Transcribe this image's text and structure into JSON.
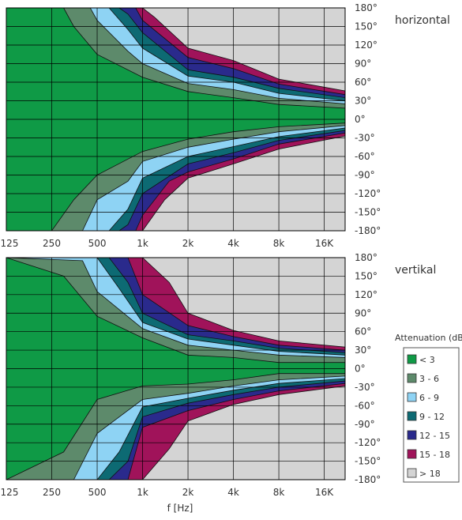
{
  "chart_data": {
    "type": "contour",
    "x_label": "f [Hz]",
    "x_ticks": [
      "125",
      "250",
      "500",
      "1k",
      "2k",
      "4k",
      "8k",
      "16K"
    ],
    "y_ticks": [
      "180°",
      "150°",
      "120°",
      "90°",
      "60°",
      "30°",
      "0°",
      "-30°",
      "-60°",
      "-90°",
      "-120°",
      "-150°",
      "-180°"
    ],
    "y_range": [
      -180,
      180
    ],
    "grid": true,
    "legend": {
      "title": "Attenuation (dB)",
      "placement": "right",
      "items": [
        {
          "label": "< 3",
          "color": "#0f9a46"
        },
        {
          "label": "3 - 6",
          "color": "#5d8a6b"
        },
        {
          "label": "6 - 9",
          "color": "#8ed3f4"
        },
        {
          "label": "9 - 12",
          "color": "#0d6a73"
        },
        {
          "label": "12 - 15",
          "color": "#2a2a8c"
        },
        {
          "label": "15 - 18",
          "color": "#a0135a"
        },
        {
          "label": "> 18",
          "color": "#d4d4d4"
        }
      ]
    },
    "panels": [
      {
        "title": "horizontal",
        "boundaries": [
          {
            "level": "3 - 6",
            "upper": [
              [
                125,
                180
              ],
              [
                300,
                180
              ],
              [
                350,
                150
              ],
              [
                500,
                105
              ],
              [
                1000,
                68
              ],
              [
                2000,
                45
              ],
              [
                4000,
                35
              ],
              [
                8000,
                24
              ],
              [
                22000,
                18
              ]
            ],
            "lower": [
              [
                125,
                -180
              ],
              [
                250,
                -180
              ],
              [
                350,
                -130
              ],
              [
                500,
                -90
              ],
              [
                1000,
                -52
              ],
              [
                2000,
                -32
              ],
              [
                4000,
                -20
              ],
              [
                8000,
                -12
              ],
              [
                22000,
                -6
              ]
            ]
          },
          {
            "level": "6 - 9",
            "upper": [
              [
                125,
                180
              ],
              [
                450,
                180
              ],
              [
                500,
                160
              ],
              [
                800,
                110
              ],
              [
                1000,
                90
              ],
              [
                2000,
                58
              ],
              [
                4000,
                48
              ],
              [
                8000,
                34
              ],
              [
                22000,
                25
              ]
            ],
            "lower": [
              [
                125,
                -180
              ],
              [
                400,
                -180
              ],
              [
                500,
                -130
              ],
              [
                800,
                -100
              ],
              [
                1000,
                -68
              ],
              [
                2000,
                -45
              ],
              [
                4000,
                -32
              ],
              [
                8000,
                -20
              ],
              [
                22000,
                -10
              ]
            ]
          },
          {
            "level": "9 - 12",
            "upper": [
              [
                125,
                180
              ],
              [
                600,
                180
              ],
              [
                800,
                145
              ],
              [
                1000,
                115
              ],
              [
                2000,
                70
              ],
              [
                4000,
                60
              ],
              [
                8000,
                42
              ],
              [
                22000,
                30
              ]
            ],
            "lower": [
              [
                125,
                -180
              ],
              [
                600,
                -180
              ],
              [
                800,
                -145
              ],
              [
                1000,
                -95
              ],
              [
                2000,
                -60
              ],
              [
                4000,
                -44
              ],
              [
                8000,
                -28
              ],
              [
                22000,
                -14
              ]
            ]
          },
          {
            "level": "12 - 15",
            "upper": [
              [
                125,
                180
              ],
              [
                700,
                180
              ],
              [
                800,
                170
              ],
              [
                1000,
                140
              ],
              [
                2000,
                80
              ],
              [
                4000,
                68
              ],
              [
                8000,
                50
              ],
              [
                22000,
                35
              ]
            ],
            "lower": [
              [
                125,
                -180
              ],
              [
                700,
                -180
              ],
              [
                800,
                -170
              ],
              [
                1000,
                -120
              ],
              [
                2000,
                -72
              ],
              [
                4000,
                -54
              ],
              [
                8000,
                -34
              ],
              [
                22000,
                -18
              ]
            ]
          },
          {
            "level": "15 - 18",
            "upper": [
              [
                125,
                180
              ],
              [
                900,
                180
              ],
              [
                1000,
                160
              ],
              [
                2000,
                100
              ],
              [
                4000,
                82
              ],
              [
                8000,
                57
              ],
              [
                22000,
                40
              ]
            ],
            "lower": [
              [
                125,
                -180
              ],
              [
                900,
                -180
              ],
              [
                1000,
                -155
              ],
              [
                1500,
                -100
              ],
              [
                2000,
                -85
              ],
              [
                4000,
                -64
              ],
              [
                8000,
                -40
              ],
              [
                22000,
                -22
              ]
            ]
          },
          {
            "level": "> 18",
            "upper": [
              [
                125,
                180
              ],
              [
                1000,
                180
              ],
              [
                1200,
                165
              ],
              [
                2000,
                115
              ],
              [
                4000,
                95
              ],
              [
                8000,
                65
              ],
              [
                22000,
                46
              ]
            ],
            "lower": [
              [
                125,
                -180
              ],
              [
                1000,
                -180
              ],
              [
                1400,
                -130
              ],
              [
                2000,
                -95
              ],
              [
                4000,
                -72
              ],
              [
                8000,
                -48
              ],
              [
                22000,
                -27
              ]
            ]
          }
        ]
      },
      {
        "title": "vertikal",
        "boundaries": [
          {
            "level": "3 - 6",
            "upper": [
              [
                125,
                180
              ],
              [
                300,
                150
              ],
              [
                500,
                85
              ],
              [
                1000,
                50
              ],
              [
                2000,
                22
              ],
              [
                4000,
                18
              ],
              [
                8000,
                10
              ],
              [
                22000,
                10
              ]
            ],
            "lower": [
              [
                125,
                -180
              ],
              [
                300,
                -135
              ],
              [
                500,
                -50
              ],
              [
                1000,
                -28
              ],
              [
                2000,
                -25
              ],
              [
                4000,
                -18
              ],
              [
                8000,
                -8
              ],
              [
                22000,
                -8
              ]
            ]
          },
          {
            "level": "6 - 9",
            "upper": [
              [
                125,
                180
              ],
              [
                400,
                175
              ],
              [
                500,
                125
              ],
              [
                1000,
                65
              ],
              [
                2000,
                38
              ],
              [
                4000,
                30
              ],
              [
                8000,
                22
              ],
              [
                22000,
                18
              ]
            ],
            "lower": [
              [
                125,
                -180
              ],
              [
                350,
                -180
              ],
              [
                500,
                -105
              ],
              [
                1000,
                -50
              ],
              [
                2000,
                -40
              ],
              [
                4000,
                -28
              ],
              [
                8000,
                -18
              ],
              [
                22000,
                -12
              ]
            ]
          },
          {
            "level": "9 - 12",
            "upper": [
              [
                125,
                180
              ],
              [
                500,
                180
              ],
              [
                700,
                130
              ],
              [
                1000,
                75
              ],
              [
                2000,
                48
              ],
              [
                4000,
                38
              ],
              [
                8000,
                28
              ],
              [
                22000,
                22
              ]
            ],
            "lower": [
              [
                125,
                -180
              ],
              [
                500,
                -180
              ],
              [
                700,
                -135
              ],
              [
                1000,
                -62
              ],
              [
                2000,
                -48
              ],
              [
                4000,
                -35
              ],
              [
                8000,
                -24
              ],
              [
                22000,
                -16
              ]
            ]
          },
          {
            "level": "12 - 15",
            "upper": [
              [
                125,
                180
              ],
              [
                600,
                180
              ],
              [
                800,
                140
              ],
              [
                1000,
                90
              ],
              [
                2000,
                55
              ],
              [
                4000,
                45
              ],
              [
                8000,
                33
              ],
              [
                22000,
                26
              ]
            ],
            "lower": [
              [
                125,
                -180
              ],
              [
                600,
                -180
              ],
              [
                800,
                -150
              ],
              [
                1000,
                -78
              ],
              [
                2000,
                -56
              ],
              [
                4000,
                -42
              ],
              [
                8000,
                -30
              ],
              [
                22000,
                -20
              ]
            ]
          },
          {
            "level": "15 - 18",
            "upper": [
              [
                125,
                180
              ],
              [
                800,
                180
              ],
              [
                1000,
                120
              ],
              [
                2000,
                70
              ],
              [
                4000,
                52
              ],
              [
                8000,
                38
              ],
              [
                22000,
                30
              ]
            ],
            "lower": [
              [
                125,
                -180
              ],
              [
                800,
                -180
              ],
              [
                1000,
                -95
              ],
              [
                2000,
                -68
              ],
              [
                4000,
                -50
              ],
              [
                8000,
                -36
              ],
              [
                22000,
                -24
              ]
            ]
          },
          {
            "level": "> 18",
            "upper": [
              [
                125,
                180
              ],
              [
                1000,
                180
              ],
              [
                1500,
                140
              ],
              [
                2000,
                90
              ],
              [
                4000,
                62
              ],
              [
                8000,
                45
              ],
              [
                22000,
                35
              ]
            ],
            "lower": [
              [
                125,
                -180
              ],
              [
                1000,
                -180
              ],
              [
                1500,
                -130
              ],
              [
                2000,
                -85
              ],
              [
                4000,
                -58
              ],
              [
                8000,
                -42
              ],
              [
                22000,
                -28
              ]
            ]
          }
        ]
      }
    ]
  }
}
